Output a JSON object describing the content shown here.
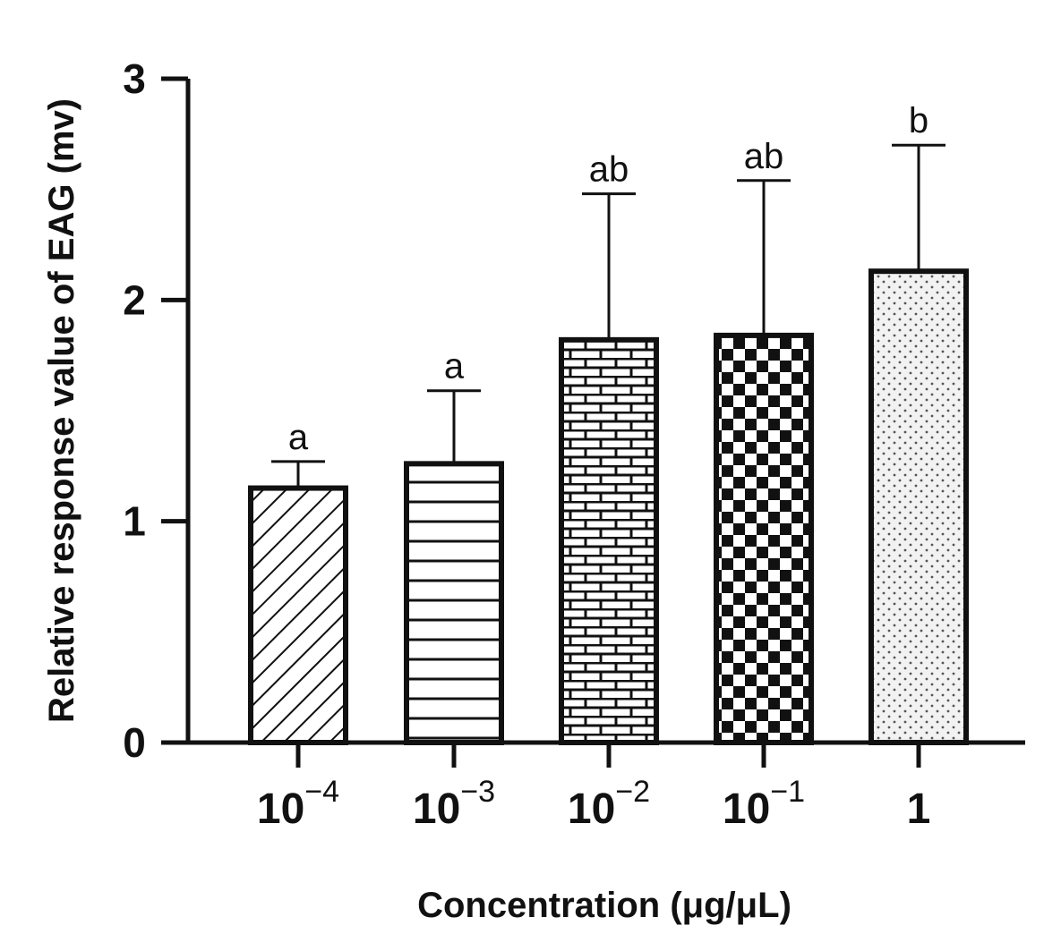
{
  "chart_data": {
    "type": "bar",
    "title": "",
    "xlabel": "Concentration (μg/μL)",
    "ylabel": "Relative response value of EAG (mv)",
    "ylim": [
      0,
      3
    ],
    "yticks": [
      {
        "value": 0,
        "label": "0"
      },
      {
        "value": 1,
        "label": "1"
      },
      {
        "value": 2,
        "label": "2"
      },
      {
        "value": 3,
        "label": "3"
      }
    ],
    "categories": [
      {
        "base": "10",
        "exp": "−4"
      },
      {
        "base": "10",
        "exp": "−3"
      },
      {
        "base": "10",
        "exp": "−2"
      },
      {
        "base": "10",
        "exp": "−1"
      },
      {
        "base": "1",
        "exp": ""
      }
    ],
    "values": [
      1.15,
      1.26,
      1.82,
      1.84,
      2.13
    ],
    "errors": [
      0.12,
      0.33,
      0.66,
      0.7,
      0.57
    ],
    "significance": [
      "a",
      "a",
      "ab",
      "ab",
      "b"
    ],
    "patterns": [
      "diagonal-hatch",
      "horizontal-lines",
      "brick",
      "checkerboard",
      "dots"
    ]
  }
}
